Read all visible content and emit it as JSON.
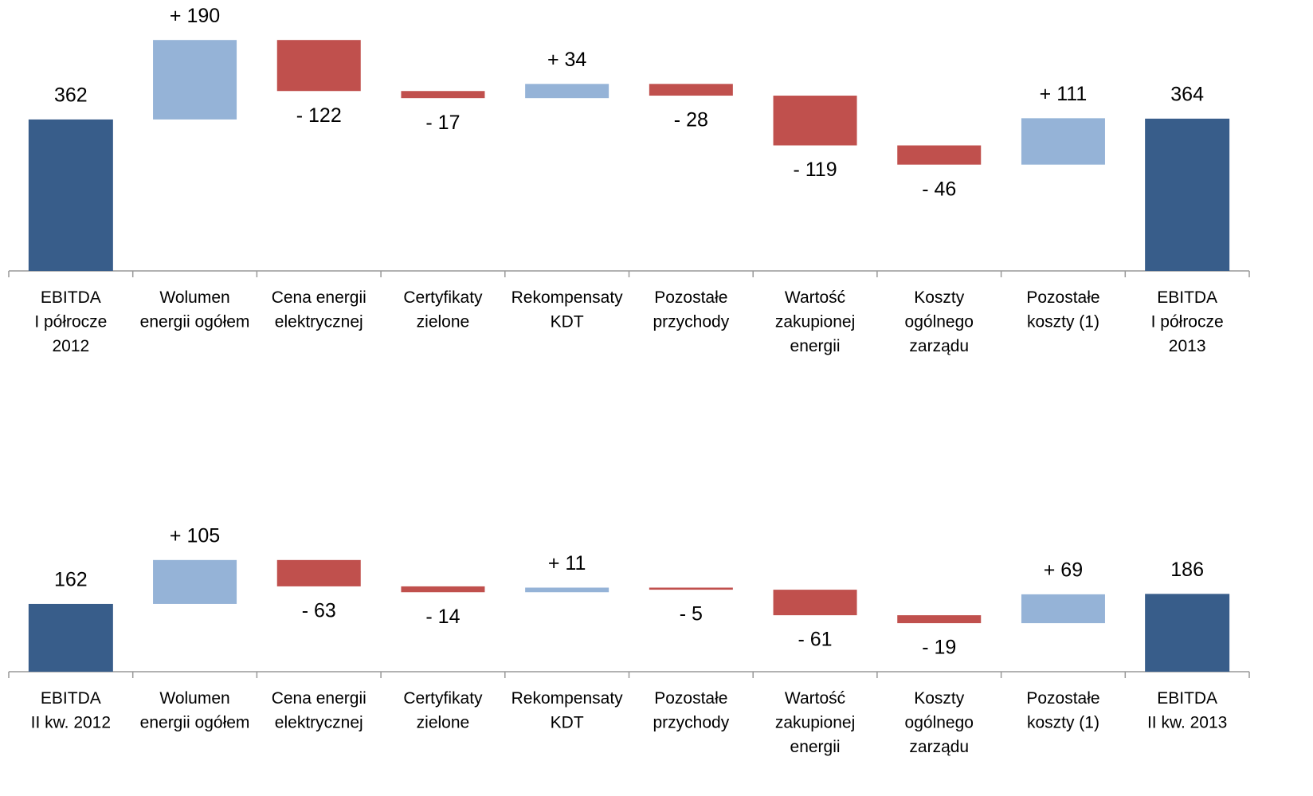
{
  "chart_data": [
    {
      "type": "waterfall",
      "categories": [
        [
          "EBITDA",
          "I półrocze",
          "2012"
        ],
        [
          "Wolumen",
          "energii ogółem"
        ],
        [
          "Cena energii",
          "elektrycznej"
        ],
        [
          "Certyfikaty",
          "zielone"
        ],
        [
          "Rekompensaty",
          "KDT"
        ],
        [
          "Pozostałe",
          "przychody"
        ],
        [
          "Wartość",
          "zakupionej",
          "energii"
        ],
        [
          "Koszty",
          "ogólnego",
          "zarządu"
        ],
        [
          "Pozostałe",
          "koszty (1)"
        ],
        [
          "EBITDA",
          "I półrocze",
          "2013"
        ]
      ],
      "values": [
        362,
        190,
        -122,
        -17,
        34,
        -28,
        -119,
        -46,
        111,
        364
      ],
      "value_labels": [
        "362",
        "+ 190",
        "- 122",
        "- 17",
        "+ 34",
        "- 28",
        "- 119",
        "- 46",
        "+ 111",
        "364"
      ],
      "colors": {
        "total": "#385d8a",
        "increase": "#95b3d7",
        "decrease": "#c0504d"
      }
    },
    {
      "type": "waterfall",
      "categories": [
        [
          "EBITDA",
          "II kw. 2012"
        ],
        [
          "Wolumen",
          "energii ogółem"
        ],
        [
          "Cena energii",
          "elektrycznej"
        ],
        [
          "Certyfikaty",
          "zielone"
        ],
        [
          "Rekompensaty",
          "KDT"
        ],
        [
          "Pozostałe",
          "przychody"
        ],
        [
          "Wartość",
          "zakupionej",
          "energii"
        ],
        [
          "Koszty",
          "ogólnego",
          "zarządu"
        ],
        [
          "Pozostałe",
          "koszty (1)"
        ],
        [
          "EBITDA",
          "II kw. 2013"
        ]
      ],
      "values": [
        162,
        105,
        -63,
        -14,
        11,
        -5,
        -61,
        -19,
        69,
        186
      ],
      "value_labels": [
        "162",
        "+ 105",
        "- 63",
        "- 14",
        "+ 11",
        "- 5",
        "- 61",
        "- 19",
        "+ 69",
        "186"
      ],
      "colors": {
        "total": "#385d8a",
        "increase": "#95b3d7",
        "decrease": "#c0504d"
      }
    }
  ]
}
